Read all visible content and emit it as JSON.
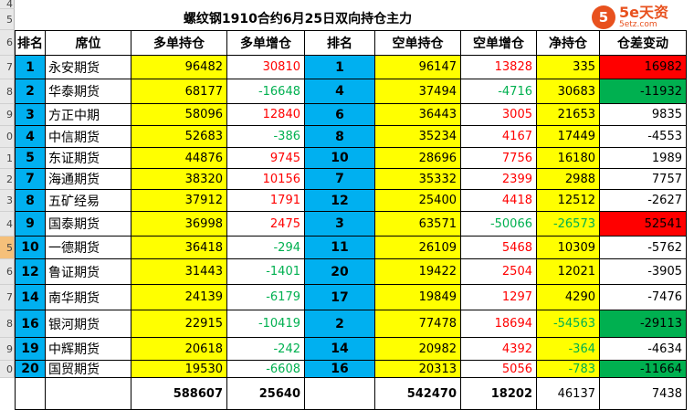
{
  "title": "螺纹钢1910合约6月25日双向持仓主力",
  "logo": {
    "glyph": "5",
    "name": "5e天资",
    "sub": "5etz.com"
  },
  "row_headers": [
    "4",
    "5",
    "6",
    "7",
    "8",
    "9",
    "0",
    "1",
    "2",
    "3",
    "4",
    "5",
    "6",
    "7",
    "8",
    "9",
    "0"
  ],
  "selected_row_header": 11,
  "colors": {
    "yellow": "#ffff00",
    "blue": "#00b0f0",
    "red_fill": "#ff0000",
    "green_fill": "#00b050",
    "red_text": "#ff0000",
    "green_text": "#00b050",
    "black": "#000000"
  },
  "columns": [
    "排名",
    "席位",
    "多单持仓",
    "多单增仓",
    "排名",
    "空单持仓",
    "空单增仓",
    "净持仓",
    "仓差变动"
  ],
  "rows": [
    {
      "rank": "1",
      "seat": "永安期货",
      "long": "96482",
      "long_chg": "30810",
      "rank2": "1",
      "short": "96147",
      "short_chg": "13828",
      "net": "335",
      "diff": "16982",
      "diff_color": "red"
    },
    {
      "rank": "2",
      "seat": "华泰期货",
      "long": "68177",
      "long_chg": "-16648",
      "rank2": "4",
      "short": "37494",
      "short_chg": "-4716",
      "net": "30683",
      "diff": "-11932",
      "diff_color": "green"
    },
    {
      "rank": "3",
      "seat": "方正中期",
      "long": "58096",
      "long_chg": "12840",
      "rank2": "6",
      "short": "36443",
      "short_chg": "3005",
      "net": "21653",
      "diff": "9835",
      "diff_color": "none"
    },
    {
      "rank": "4",
      "seat": "中信期货",
      "long": "52683",
      "long_chg": "-386",
      "rank2": "8",
      "short": "35234",
      "short_chg": "4167",
      "net": "17449",
      "diff": "-4553",
      "diff_color": "none"
    },
    {
      "rank": "5",
      "seat": "东证期货",
      "long": "44876",
      "long_chg": "9745",
      "rank2": "10",
      "short": "28696",
      "short_chg": "7756",
      "net": "16180",
      "diff": "1989",
      "diff_color": "none"
    },
    {
      "rank": "7",
      "seat": "海通期货",
      "long": "38320",
      "long_chg": "10156",
      "rank2": "7",
      "short": "35332",
      "short_chg": "2399",
      "net": "2988",
      "diff": "7757",
      "diff_color": "none"
    },
    {
      "rank": "8",
      "seat": "五矿经易",
      "long": "37912",
      "long_chg": "1791",
      "rank2": "12",
      "short": "25400",
      "short_chg": "4418",
      "net": "12512",
      "diff": "-2627",
      "diff_color": "none"
    },
    {
      "rank": "9",
      "seat": "国泰期货",
      "long": "36998",
      "long_chg": "2475",
      "rank2": "3",
      "short": "63571",
      "short_chg": "-50066",
      "net": "-26573",
      "diff": "52541",
      "diff_color": "red"
    },
    {
      "rank": "10",
      "seat": "一德期货",
      "long": "36418",
      "long_chg": "-294",
      "rank2": "11",
      "short": "26109",
      "short_chg": "5468",
      "net": "10309",
      "diff": "-5762",
      "diff_color": "none"
    },
    {
      "rank": "12",
      "seat": "鲁证期货",
      "long": "31443",
      "long_chg": "-1401",
      "rank2": "20",
      "short": "19422",
      "short_chg": "2504",
      "net": "12021",
      "diff": "-3905",
      "diff_color": "none"
    },
    {
      "rank": "14",
      "seat": "南华期货",
      "long": "24139",
      "long_chg": "-6179",
      "rank2": "17",
      "short": "19849",
      "short_chg": "1297",
      "net": "4290",
      "diff": "-7476",
      "diff_color": "none"
    },
    {
      "rank": "16",
      "seat": "银河期货",
      "long": "22915",
      "long_chg": "-10419",
      "rank2": "2",
      "short": "77478",
      "short_chg": "18694",
      "net": "-54563",
      "diff": "-29113",
      "diff_color": "green"
    },
    {
      "rank": "19",
      "seat": "中辉期货",
      "long": "20618",
      "long_chg": "-242",
      "rank2": "14",
      "short": "20982",
      "short_chg": "4392",
      "net": "-364",
      "diff": "-4634",
      "diff_color": "none"
    },
    {
      "rank": "20",
      "seat": "国贸期货",
      "long": "19530",
      "long_chg": "-6608",
      "rank2": "16",
      "short": "20313",
      "short_chg": "5056",
      "net": "-783",
      "diff": "-11664",
      "diff_color": "green"
    }
  ],
  "totals": {
    "long": "588607",
    "long_chg": "25640",
    "short": "542470",
    "short_chg": "18202",
    "net": "46137",
    "diff": "7438"
  }
}
